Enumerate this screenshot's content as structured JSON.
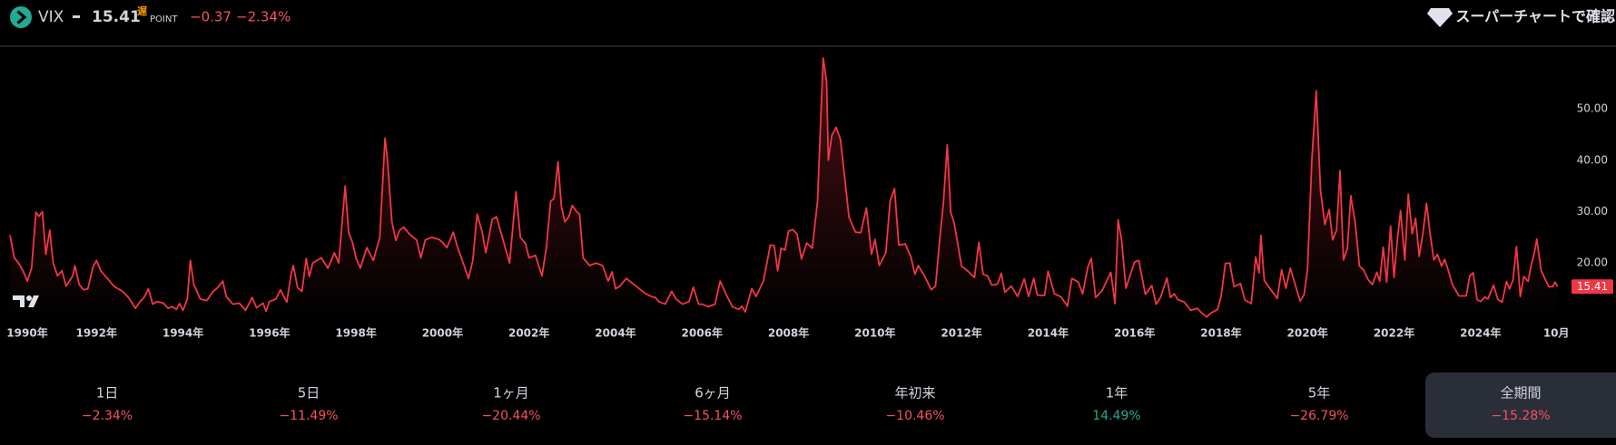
{
  "header": {
    "symbol": "VIX",
    "price": "15.41",
    "delay": "遅",
    "unit": "POINT",
    "change": "−0.37",
    "change_pct": "−2.34%",
    "link": "スーパーチャートで確認"
  },
  "periods": [
    {
      "label": "1日",
      "change": "−2.34%",
      "color": "#f7525f"
    },
    {
      "label": "5日",
      "change": "−11.49%",
      "color": "#f7525f"
    },
    {
      "label": "1ヶ月",
      "change": "−20.44%",
      "color": "#f7525f"
    },
    {
      "label": "6ヶ月",
      "change": "−15.14%",
      "color": "#f7525f"
    },
    {
      "label": "年初来",
      "change": "−10.46%",
      "color": "#f7525f"
    },
    {
      "label": "1年",
      "change": "14.49%",
      "color": "#22ab94"
    },
    {
      "label": "5年",
      "change": "−26.79%",
      "color": "#f7525f"
    },
    {
      "label": "全期間",
      "change": "−15.28%",
      "color": "#f7525f",
      "selected": true
    }
  ],
  "chart_data": {
    "type": "area",
    "color": "#f23645",
    "xlim": [
      1990,
      2026.04
    ],
    "ylim": [
      9,
      62
    ],
    "xticks": [
      {
        "value": 1990,
        "label": "1990年"
      },
      {
        "value": 1992,
        "label": "1992年"
      },
      {
        "value": 1994,
        "label": "1994年"
      },
      {
        "value": 1996,
        "label": "1996年"
      },
      {
        "value": 1998,
        "label": "1998年"
      },
      {
        "value": 2000,
        "label": "2000年"
      },
      {
        "value": 2002,
        "label": "2002年"
      },
      {
        "value": 2004,
        "label": "2004年"
      },
      {
        "value": 2006,
        "label": "2006年"
      },
      {
        "value": 2008,
        "label": "2008年"
      },
      {
        "value": 2010,
        "label": "2010年"
      },
      {
        "value": 2012,
        "label": "2012年"
      },
      {
        "value": 2014,
        "label": "2014年"
      },
      {
        "value": 2016,
        "label": "2016年"
      },
      {
        "value": 2018,
        "label": "2018年"
      },
      {
        "value": 2020,
        "label": "2020年"
      },
      {
        "value": 2022,
        "label": "2022年"
      },
      {
        "value": 2024,
        "label": "2024年"
      },
      {
        "value": 2025.75,
        "label": "10月"
      }
    ],
    "yticks": [
      {
        "value": 20,
        "label": "20.00"
      },
      {
        "value": 30,
        "label": "30.00"
      },
      {
        "value": 40,
        "label": "40.00"
      },
      {
        "value": 50,
        "label": "50.00"
      }
    ],
    "x": [
      1990.0,
      1990.1,
      1990.2,
      1990.3,
      1990.4,
      1990.5,
      1990.6,
      1990.67,
      1990.75,
      1990.83,
      1990.92,
      1991.0,
      1991.1,
      1991.2,
      1991.3,
      1991.45,
      1991.5,
      1991.6,
      1991.7,
      1991.8,
      1991.92,
      1992.0,
      1992.1,
      1992.25,
      1992.4,
      1992.5,
      1992.6,
      1992.75,
      1992.9,
      1993.0,
      1993.1,
      1993.2,
      1993.3,
      1993.4,
      1993.55,
      1993.65,
      1993.75,
      1993.85,
      1993.92,
      1994.0,
      1994.1,
      1994.17,
      1994.25,
      1994.4,
      1994.55,
      1994.7,
      1994.8,
      1994.92,
      1995.0,
      1995.15,
      1995.3,
      1995.45,
      1995.6,
      1995.7,
      1995.85,
      1995.92,
      1996.0,
      1996.15,
      1996.25,
      1996.4,
      1996.5,
      1996.55,
      1996.65,
      1996.75,
      1996.85,
      1996.92,
      1997.0,
      1997.2,
      1997.35,
      1997.5,
      1997.6,
      1997.75,
      1997.83,
      1997.92,
      1998.0,
      1998.1,
      1998.25,
      1998.4,
      1998.55,
      1998.67,
      1998.72,
      1998.83,
      1998.92,
      1999.0,
      1999.1,
      1999.25,
      1999.4,
      1999.5,
      1999.6,
      1999.75,
      1999.92,
      2000.0,
      2000.1,
      2000.25,
      2000.35,
      2000.5,
      2000.6,
      2000.7,
      2000.8,
      2000.92,
      2001.0,
      2001.15,
      2001.25,
      2001.45,
      2001.55,
      2001.7,
      2001.8,
      2001.92,
      2002.0,
      2002.15,
      2002.3,
      2002.4,
      2002.5,
      2002.58,
      2002.67,
      2002.75,
      2002.83,
      2002.92,
      2003.0,
      2003.1,
      2003.17,
      2003.25,
      2003.4,
      2003.55,
      2003.7,
      2003.83,
      2003.92,
      2004.0,
      2004.1,
      2004.25,
      2004.4,
      2004.55,
      2004.7,
      2004.83,
      2004.92,
      2005.0,
      2005.15,
      2005.3,
      2005.4,
      2005.55,
      2005.7,
      2005.8,
      2005.92,
      2006.0,
      2006.15,
      2006.3,
      2006.42,
      2006.55,
      2006.7,
      2006.85,
      2006.92,
      2007.0,
      2007.15,
      2007.25,
      2007.42,
      2007.58,
      2007.67,
      2007.75,
      2007.83,
      2007.92,
      2008.0,
      2008.1,
      2008.2,
      2008.3,
      2008.42,
      2008.55,
      2008.67,
      2008.8,
      2008.88,
      2008.92,
      2009.0,
      2009.1,
      2009.2,
      2009.3,
      2009.4,
      2009.55,
      2009.67,
      2009.8,
      2009.92,
      2010.0,
      2010.1,
      2010.25,
      2010.35,
      2010.45,
      2010.55,
      2010.7,
      2010.83,
      2010.92,
      2011.0,
      2011.15,
      2011.3,
      2011.4,
      2011.5,
      2011.58,
      2011.67,
      2011.75,
      2011.83,
      2011.92,
      2012.0,
      2012.15,
      2012.3,
      2012.4,
      2012.5,
      2012.6,
      2012.7,
      2012.83,
      2012.92,
      2013.0,
      2013.15,
      2013.3,
      2013.45,
      2013.55,
      2013.67,
      2013.75,
      2013.83,
      2013.92,
      2014.0,
      2014.15,
      2014.3,
      2014.45,
      2014.55,
      2014.7,
      2014.8,
      2014.92,
      2015.0,
      2015.1,
      2015.25,
      2015.45,
      2015.55,
      2015.62,
      2015.7,
      2015.8,
      2015.92,
      2016.0,
      2016.1,
      2016.25,
      2016.4,
      2016.5,
      2016.6,
      2016.75,
      2016.83,
      2016.92,
      2017.0,
      2017.15,
      2017.3,
      2017.45,
      2017.55,
      2017.67,
      2017.75,
      2017.92,
      2018.0,
      2018.1,
      2018.2,
      2018.3,
      2018.45,
      2018.55,
      2018.7,
      2018.8,
      2018.88,
      2018.92,
      2019.0,
      2019.15,
      2019.3,
      2019.4,
      2019.5,
      2019.6,
      2019.7,
      2019.83,
      2019.92,
      2020.0,
      2020.1,
      2020.2,
      2020.3,
      2020.4,
      2020.5,
      2020.58,
      2020.67,
      2020.75,
      2020.83,
      2020.92,
      2021.0,
      2021.1,
      2021.2,
      2021.3,
      2021.4,
      2021.5,
      2021.6,
      2021.67,
      2021.75,
      2021.83,
      2021.92,
      2022.0,
      2022.08,
      2022.15,
      2022.25,
      2022.33,
      2022.42,
      2022.5,
      2022.58,
      2022.67,
      2022.75,
      2022.83,
      2022.92,
      2023.0,
      2023.1,
      2023.17,
      2023.25,
      2023.35,
      2023.5,
      2023.6,
      2023.67,
      2023.75,
      2023.83,
      2023.92,
      2024.0,
      2024.1,
      2024.17,
      2024.3,
      2024.4,
      2024.5,
      2024.6,
      2024.67,
      2024.75,
      2024.83,
      2024.92,
      2025.0,
      2025.1,
      2025.17,
      2025.25,
      2025.3,
      2025.4,
      2025.5,
      2025.58,
      2025.67,
      2025.72,
      2025.78
    ],
    "values": [
      25.4,
      21,
      20,
      18.5,
      16.5,
      19,
      29.9,
      29.1,
      30.0,
      21.7,
      26.4,
      20,
      17.5,
      18.5,
      15.5,
      17.5,
      19.5,
      15.8,
      14.8,
      15,
      19.3,
      20.5,
      18.5,
      17,
      15.5,
      15,
      14.5,
      13.2,
      11.2,
      12.4,
      13.3,
      15,
      12,
      12.5,
      12.2,
      11.2,
      11.5,
      11,
      12.1,
      10.8,
      13,
      20.5,
      15.8,
      13,
      12.7,
      14.5,
      15.2,
      16.5,
      13.5,
      12,
      12.2,
      10.8,
      13.3,
      11.3,
      12.2,
      10.6,
      12.5,
      13,
      14.8,
      12.4,
      17.9,
      19.5,
      15.2,
      14.5,
      20.9,
      17.4,
      20,
      21,
      19,
      22,
      20,
      35,
      26,
      24,
      21,
      19,
      23,
      20.5,
      25,
      44.3,
      40.9,
      28,
      24.4,
      26.3,
      27,
      25.5,
      24.5,
      21,
      24.5,
      25,
      24.6,
      24,
      23,
      26,
      23,
      19.5,
      17,
      20.5,
      29.5,
      26,
      22,
      28.5,
      29,
      23,
      20,
      33.9,
      25,
      23.8,
      21,
      21.5,
      17.5,
      23,
      32,
      32.6,
      39.7,
      31,
      28,
      29,
      31.2,
      30,
      29.5,
      21,
      19.5,
      20,
      19.5,
      16.5,
      18.3,
      15,
      15.5,
      17,
      16,
      15,
      14,
      13.5,
      13.3,
      12.5,
      12,
      14.5,
      13,
      12,
      12.5,
      15.3,
      12,
      12,
      11.5,
      12,
      16.5,
      14,
      11.5,
      11,
      11.6,
      10.5,
      15,
      13.5,
      16.5,
      23.5,
      23.4,
      18.5,
      22.9,
      22.5,
      26.2,
      26.5,
      25.6,
      20.8,
      23.9,
      22.9,
      32,
      59.9,
      55.3,
      40,
      44.8,
      46.4,
      44.1,
      36.5,
      28.9,
      26,
      25.9,
      30.7,
      21.7,
      24.6,
      19.5,
      22,
      32.1,
      34.5,
      23.5,
      23.7,
      21.2,
      17.8,
      19.5,
      17.4,
      14.8,
      15.5,
      25,
      31.6,
      43,
      29.9,
      27.8,
      23.4,
      19.4,
      18.4,
      17.2,
      24,
      17.8,
      17.5,
      15.7,
      15.9,
      18,
      14.3,
      15.5,
      13.5,
      16.9,
      13.5,
      17,
      13.8,
      13.7,
      13.7,
      18.4,
      14,
      13.4,
      11.6,
      17,
      16.3,
      14,
      19.2,
      20.9,
      13.3,
      14.6,
      18.2,
      12.1,
      28.4,
      24.5,
      15.1,
      18.2,
      20.2,
      20.5,
      13.9,
      15.6,
      12,
      13.3,
      17.1,
      13.3,
      14,
      12.9,
      12.4,
      10.8,
      11.2,
      10.3,
      9.5,
      10.2,
      11,
      13.5,
      19.9,
      20,
      15.4,
      16,
      12.8,
      12.1,
      21.2,
      18.1,
      25.4,
      16.6,
      14.8,
      13.1,
      18.7,
      15.1,
      19,
      16.2,
      12.6,
      13.8,
      18.8,
      40.1,
      53.5,
      34.2,
      27.5,
      30.4,
      24.5,
      26.4,
      38,
      20.6,
      22.8,
      33.1,
      27.9,
      19.4,
      18.6,
      16.8,
      15.8,
      18.2,
      16.5,
      23.1,
      16.3,
      27.2,
      17.2,
      24.8,
      30.2,
      20.6,
      33.4,
      25.7,
      28.7,
      21.3,
      25.9,
      31.6,
      25.9,
      20.6,
      21.7,
      19.4,
      20.7,
      18.7,
      15.8,
      13.6,
      13.6,
      13.6,
      17.5,
      18.1,
      12.9,
      12.5,
      13.4,
      13,
      15.7,
      12.9,
      12.4,
      16.4,
      15,
      16.7,
      23.2,
      13.5,
      17.4,
      16.4,
      19.6,
      22.3,
      24.7,
      18.6,
      16.7,
      15.4,
      15.4,
      16.3,
      15.41
    ]
  }
}
